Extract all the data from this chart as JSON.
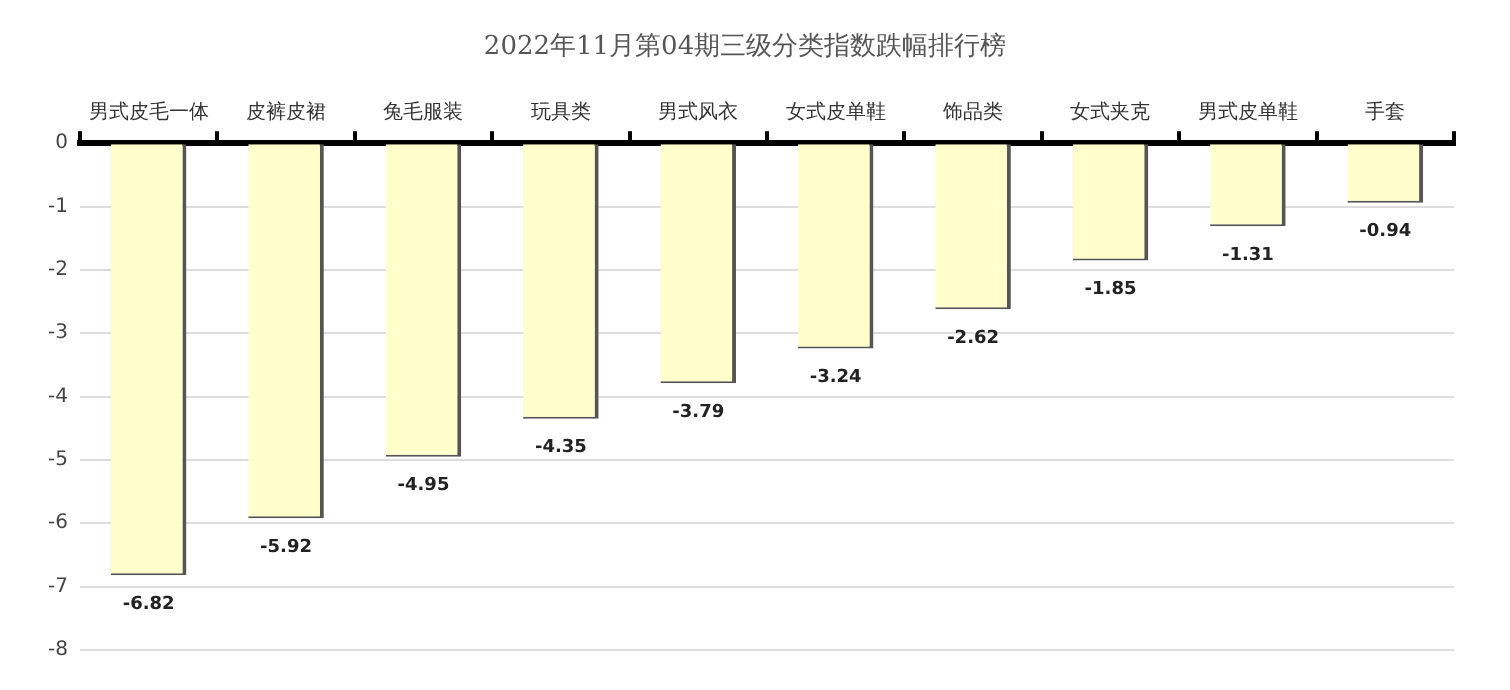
{
  "chart_data": {
    "type": "bar",
    "title": "2022年11月第04期三级分类指数跌幅排行榜",
    "categories": [
      "男式皮毛一体",
      "皮裤皮裙",
      "兔毛服装",
      "玩具类",
      "男式风衣",
      "女式皮单鞋",
      "饰品类",
      "女式夹克",
      "男式皮单鞋",
      "手套"
    ],
    "values": [
      -6.82,
      -5.92,
      -4.95,
      -4.35,
      -3.79,
      -3.24,
      -2.62,
      -1.85,
      -1.31,
      -0.94
    ],
    "color": "#ffffcc",
    "ylim": [
      -8,
      0
    ],
    "yticks": [
      -8,
      -7,
      -6,
      -5,
      -4,
      -3,
      -2,
      -1,
      0
    ],
    "grid": "y",
    "data_labels": true,
    "legend": false
  }
}
